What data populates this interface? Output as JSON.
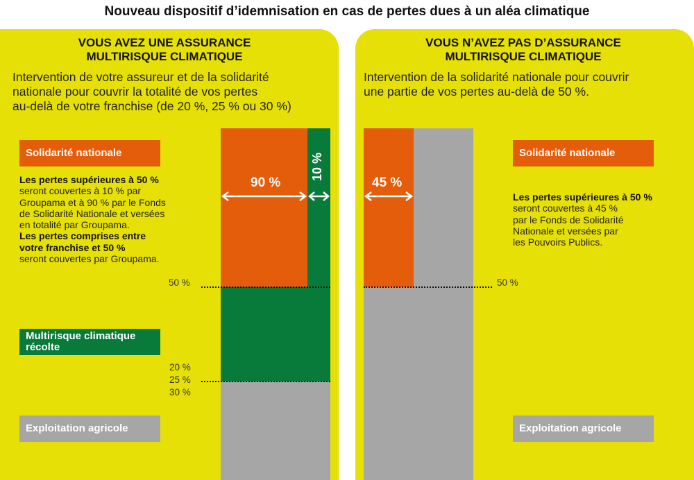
{
  "title": "Nouveau dispositif d’idemnisation en cas de pertes dues à un aléa climatique",
  "left": {
    "heading": [
      "VOUS AVEZ UNE ASSURANCE",
      "MULTIRISQUE CLIMATIQUE"
    ],
    "intro": [
      "Intervention de votre assureur et de la solidarité",
      "nationale pour couvrir la totalité de vos pertes",
      "au-delà de votre franchise (de 20 %, 25 % ou 30 %)"
    ],
    "solidarite_label": "Solidarité nationale",
    "desc": {
      "b1": "Les pertes supérieures à 50 %",
      "t1": [
        "seront couvertes à 10 % par",
        "Groupama et à 90 % par le Fonds",
        "de Solidarité Nationale et versées",
        "en totalité par Groupama."
      ],
      "b2": [
        "Les pertes comprises entre",
        "votre franchise et 50 %"
      ],
      "t2": "seront couvertes par Groupama."
    },
    "multirisque_label": [
      "Multirisque climatique",
      "récolte"
    ],
    "exploitation_label": "Exploitation agricole",
    "pct_90": "90 %",
    "pct_10": "10 %",
    "tick_50": "50 %",
    "tick_20": "20 %",
    "tick_25": "25 %",
    "tick_30": "30 %"
  },
  "right": {
    "heading": [
      "VOUS N’AVEZ PAS D’ASSURANCE",
      "MULTIRISQUE CLIMATIQUE"
    ],
    "intro": [
      "Intervention de la solidarité nationale pour couvrir",
      "une partie de vos pertes au-delà de 50 %."
    ],
    "solidarite_label": "Solidarité nationale",
    "desc": {
      "b1": "Les pertes supérieures à 50 %",
      "t1": [
        "seront couvertes à 45 %",
        "par le Fonds de Solidarité",
        "Nationale et versées par",
        "les Pouvoirs Publics."
      ]
    },
    "exploitation_label": "Exploitation agricole",
    "pct_45": "45 %",
    "tick_50": "50 %"
  },
  "colors": {
    "background": "#e6e007",
    "orange": "#e35d0b",
    "green": "#087a3a",
    "grey": "#a6a6a6"
  }
}
